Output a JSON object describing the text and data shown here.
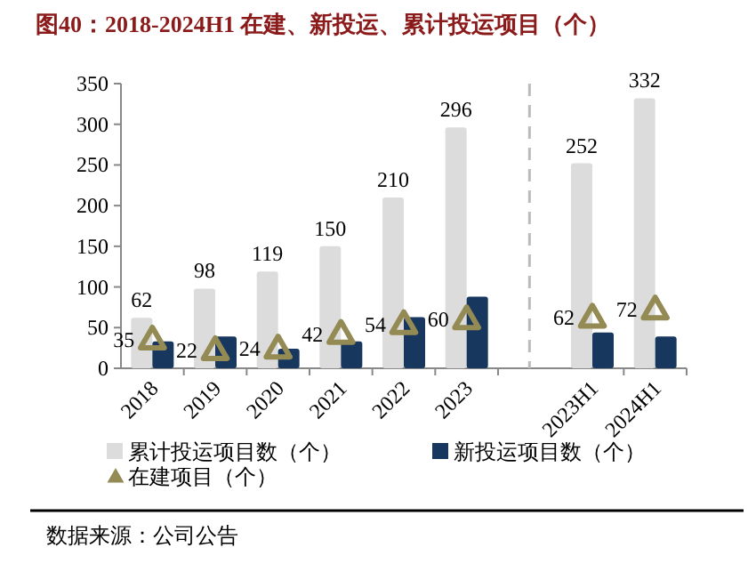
{
  "chart_data": {
    "type": "bar",
    "title": "图40：2018-2024H1 在建、新投运、累计投运项目（个）",
    "categories": [
      "2018",
      "2019",
      "2020",
      "2021",
      "2022",
      "2023",
      null,
      "2023H1",
      "2024H1"
    ],
    "series": [
      {
        "name": "累计投运项目数（个）",
        "color": "#dcdcdc",
        "values": [
          62,
          98,
          119,
          150,
          210,
          296,
          null,
          252,
          332
        ],
        "value_labels": [
          "62",
          "98",
          "119",
          "150",
          "210",
          "296",
          null,
          "252",
          "332"
        ]
      },
      {
        "name": "新投运项目数（个）",
        "color": "#17375e",
        "values": [
          33,
          39,
          24,
          33,
          63,
          88,
          null,
          44,
          39
        ]
      },
      {
        "name": "在建项目（个）",
        "type": "scatter",
        "color": "#948a54",
        "values": [
          35,
          22,
          24,
          42,
          54,
          60,
          null,
          62,
          72
        ],
        "value_labels": [
          "35",
          "22",
          "24",
          "42",
          "54",
          "60",
          null,
          "62",
          "72"
        ]
      }
    ],
    "ylim": [
      0,
      350
    ],
    "yticks": [
      0,
      50,
      100,
      150,
      200,
      250,
      300,
      350
    ],
    "legend": "bottom",
    "marker": "triangle",
    "annotations": [
      "数据来源：公司公告"
    ]
  }
}
